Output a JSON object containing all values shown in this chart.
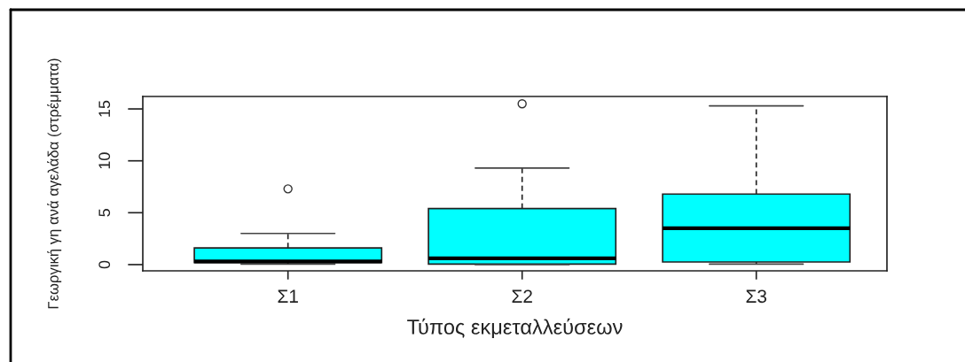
{
  "chart_data": {
    "type": "box",
    "categories": [
      "Σ1",
      "Σ2",
      "Σ3"
    ],
    "xlabel": "Τύπος εκμεταλλεύσεων",
    "ylabel": "Γεωργική γη ανά αγελάδα (στρέμματα)",
    "ylim": [
      -0.6,
      16.2
    ],
    "yticks": [
      0,
      5,
      10,
      15
    ],
    "colors": [
      "#00ffff",
      "#00ffff",
      "#00ffff"
    ],
    "boxes": [
      {
        "low": 0.05,
        "q1": 0.2,
        "median": 0.3,
        "q3": 1.6,
        "high": 3.0,
        "outliers": [
          7.3
        ]
      },
      {
        "low": 0,
        "q1": 0.05,
        "median": 0.6,
        "q3": 5.4,
        "high": 9.3,
        "outliers": [
          15.5
        ]
      },
      {
        "low": 0.05,
        "q1": 0.25,
        "median": 3.5,
        "q3": 6.8,
        "high": 15.3
      }
    ]
  }
}
